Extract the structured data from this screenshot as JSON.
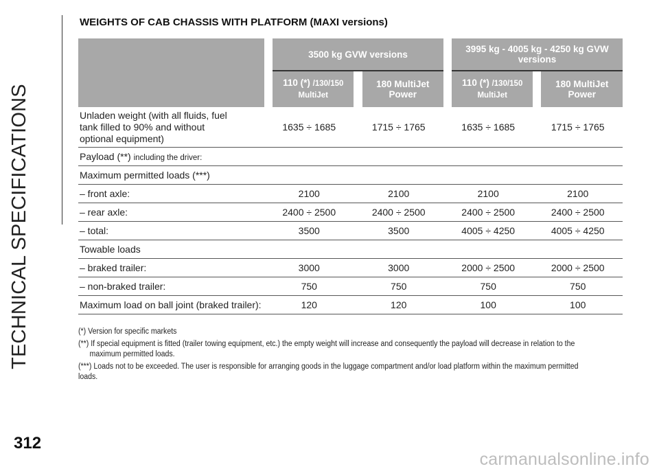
{
  "sidebar": {
    "section_title": "TECHNICAL SPECIFICATIONS"
  },
  "page_number": "312",
  "watermark": "carmanualsonline.info",
  "title": "WEIGHTS OF CAB CHASSIS WITH PLATFORM (MAXI versions)",
  "table": {
    "group_headers": [
      "3500 kg GVW versions",
      "3995 kg - 4005 kg - 4250 kg GVW versions"
    ],
    "engine_headers": [
      {
        "main": "110 (*) ",
        "small": "/130/150",
        "line2": "MultiJet"
      },
      {
        "main": "180 MultiJet",
        "line2": "Power"
      },
      {
        "main": "110 (*) ",
        "small": "/130/150",
        "line2": "MultiJet"
      },
      {
        "main": "180 MultiJet",
        "line2": "Power"
      }
    ],
    "rows": [
      {
        "label": "Unladen weight (with all fluids, fuel tank filled to 90% and without optional equipment)",
        "values": [
          "1635 ÷ 1685",
          "1715 ÷ 1765",
          "1635 ÷ 1685",
          "1715 ÷ 1765"
        ]
      },
      {
        "label": "Payload (**) ",
        "label_small": "including the driver:",
        "values": [
          "",
          "",
          "",
          ""
        ]
      },
      {
        "label": "Maximum permitted loads (***)",
        "values": [
          "",
          "",
          "",
          ""
        ]
      },
      {
        "label": "– front axle:",
        "values": [
          "2100",
          "2100",
          "2100",
          "2100"
        ]
      },
      {
        "label": "– rear axle:",
        "values": [
          "2400 ÷ 2500",
          "2400 ÷ 2500",
          "2400 ÷ 2500",
          "2400 ÷ 2500"
        ]
      },
      {
        "label": "– total:",
        "values": [
          "3500",
          "3500",
          "4005 ÷ 4250",
          "4005 ÷ 4250"
        ]
      },
      {
        "label": "Towable loads",
        "values": [
          "",
          "",
          "",
          ""
        ]
      },
      {
        "label": "– braked trailer:",
        "values": [
          "3000",
          "3000",
          "2000 ÷ 2500",
          "2000 ÷ 2500"
        ]
      },
      {
        "label": "– non-braked trailer:",
        "values": [
          "750",
          "750",
          "750",
          "750"
        ]
      },
      {
        "label": "Maximum load on ball joint (braked trailer):",
        "values": [
          "120",
          "120",
          "100",
          "100"
        ]
      }
    ]
  },
  "footnotes": [
    "(*) Version for specific markets",
    "(**) If special equipment is fitted (trailer towing equipment, etc.) the empty weight will increase and consequently the payload will decrease in relation to the",
    "maximum permitted loads.",
    "(***) Loads not to be exceeded. The user is responsible for arranging goods in the luggage compartment and/or load platform within the maximum permitted loads."
  ]
}
